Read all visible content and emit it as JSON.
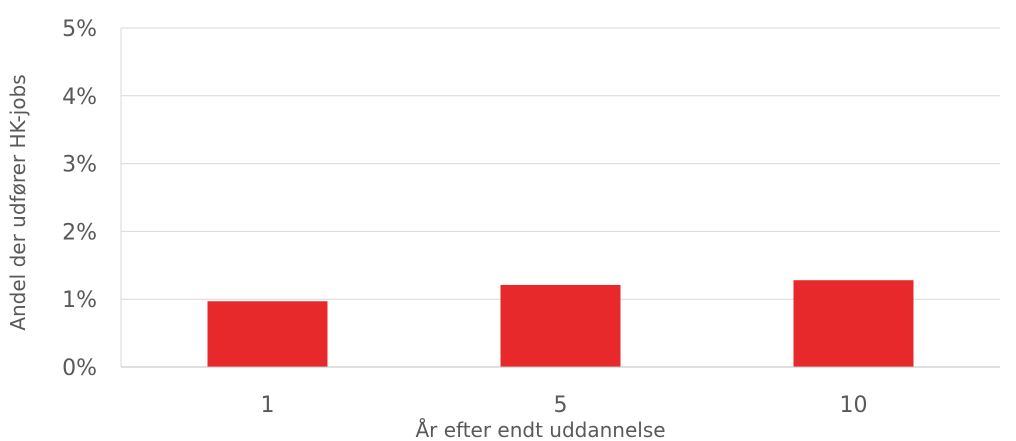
{
  "chart_data": {
    "type": "bar",
    "categories": [
      "1",
      "5",
      "10"
    ],
    "values": [
      0.97,
      1.21,
      1.28
    ],
    "ylim": [
      0,
      5
    ],
    "yticks": [
      0,
      1,
      2,
      3,
      4,
      5
    ],
    "ytick_labels": [
      "0%",
      "1%",
      "2%",
      "3%",
      "4%",
      "5%"
    ],
    "xlabel": "År efter endt uddannelse",
    "ylabel": "Andel der udfører HK-jobs",
    "grid": true,
    "legend": "none",
    "colors": {
      "bar": "#e8292c",
      "grid": "#d9d9d9",
      "axis": "#bfbfbf",
      "text": "#595959"
    }
  }
}
